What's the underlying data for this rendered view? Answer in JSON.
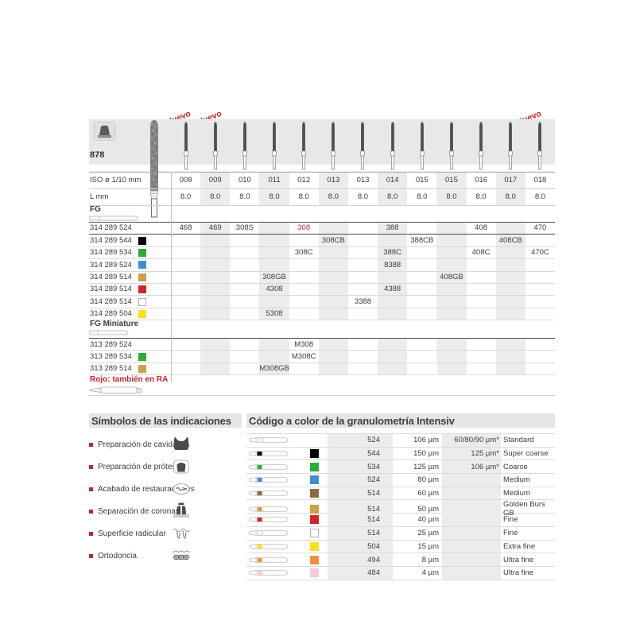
{
  "header": {
    "product_number": "878",
    "nuevo_labels": [
      "Nuevo",
      "Nuevo",
      "Nuevo"
    ],
    "iso_label": "ISO ø 1/10 mm",
    "l_label": "L mm",
    "fg_label": "FG",
    "fg_miniature_label": "FG Miniature",
    "rojo_note": "Rojo: también en RA",
    "iso_values": [
      "008",
      "009",
      "010",
      "011",
      "012",
      "013",
      "013",
      "014",
      "015",
      "015",
      "016",
      "017",
      "018"
    ],
    "l_values": [
      "8.0",
      "8.0",
      "8.0",
      "8.0",
      "8.0",
      "8.0",
      "8.0",
      "8.0",
      "8.0",
      "8.0",
      "8.0",
      "8.0",
      "8.0"
    ]
  },
  "colors": {
    "black": "#000000",
    "green": "#2ea93c",
    "blue": "#3f8fd2",
    "gold": "#c9a24b",
    "brown": "#8a6b40",
    "red": "#d2232a",
    "white": "#ffffff",
    "yellow": "#fcdf1f",
    "orange": "#ef9143",
    "pink": "#f5c9d6",
    "accent_red": "#c5262c"
  },
  "main_rows": [
    {
      "code": "314 289 524",
      "color": "none",
      "cells": [
        "468",
        "469",
        "308S",
        "",
        "308",
        "",
        "",
        "388",
        "",
        "",
        "408",
        "",
        "470"
      ],
      "red_cells": [
        4
      ]
    },
    {
      "code": "314 289 544",
      "color": "black",
      "cells": [
        "",
        "",
        "",
        "",
        "",
        "308CB",
        "",
        "",
        "388CB",
        "",
        "",
        "408CB",
        ""
      ],
      "red_cells": []
    },
    {
      "code": "314 289 534",
      "color": "green",
      "cells": [
        "",
        "",
        "",
        "",
        "308C",
        "",
        "",
        "388C",
        "",
        "",
        "408C",
        "",
        "470C"
      ],
      "red_cells": []
    },
    {
      "code": "314 289 524",
      "color": "blue",
      "cells": [
        "",
        "",
        "",
        "",
        "",
        "",
        "",
        "8388",
        "",
        "",
        "",
        "",
        ""
      ],
      "red_cells": []
    },
    {
      "code": "314 289 514",
      "color": "gold",
      "cells": [
        "",
        "",
        "",
        "308GB",
        "",
        "",
        "",
        "",
        "",
        "408GB",
        "",
        "",
        ""
      ],
      "red_cells": []
    },
    {
      "code": "314 289 514",
      "color": "red",
      "cells": [
        "",
        "",
        "",
        "4308",
        "",
        "",
        "",
        "4388",
        "",
        "",
        "",
        "",
        ""
      ],
      "red_cells": []
    },
    {
      "code": "314 289 514",
      "color": "white",
      "cells": [
        "",
        "",
        "",
        "",
        "",
        "",
        "3388",
        "",
        "",
        "",
        "",
        "",
        ""
      ],
      "red_cells": []
    },
    {
      "code": "314 289 504",
      "color": "yellow",
      "cells": [
        "",
        "",
        "",
        "5308",
        "",
        "",
        "",
        "",
        "",
        "",
        "",
        "",
        ""
      ],
      "red_cells": []
    }
  ],
  "miniature_rows": [
    {
      "code": "313 289 524",
      "color": "none",
      "cells": [
        "",
        "",
        "",
        "",
        "M308",
        "",
        "",
        "",
        "",
        "",
        "",
        "",
        ""
      ],
      "red_cells": []
    },
    {
      "code": "313 289 534",
      "color": "green",
      "cells": [
        "",
        "",
        "",
        "",
        "M308C",
        "",
        "",
        "",
        "",
        "",
        "",
        "",
        ""
      ],
      "red_cells": []
    },
    {
      "code": "313 289 514",
      "color": "gold",
      "cells": [
        "",
        "",
        "",
        "M308GB",
        "",
        "",
        "",
        "",
        "",
        "",
        "",
        "",
        ""
      ],
      "red_cells": []
    }
  ],
  "symbols": {
    "title": "Símbolos de las indicaciones",
    "items": [
      {
        "label": "Preparación de cavidades",
        "icon": "cavity-prep-icon"
      },
      {
        "label": "Preparación de prótesis",
        "icon": "prosthesis-prep-icon"
      },
      {
        "label": "Acabado de restauraciones",
        "icon": "restoration-finishing-icon"
      },
      {
        "label": "Separación de coronas",
        "icon": "crown-separation-icon"
      },
      {
        "label": "Superficie radicular",
        "icon": "root-surface-icon"
      },
      {
        "label": "Ortodoncia",
        "icon": "orthodontics-icon"
      }
    ]
  },
  "granulometry": {
    "title": "Código a color de la granulometría Intensiv",
    "rows": [
      {
        "band": "none",
        "code": "524",
        "size": "106 µm",
        "extra": "60/80/90 µm*",
        "name": "Standard"
      },
      {
        "band": "black",
        "code": "544",
        "size": "150 µm",
        "extra": "125 µm*",
        "name": "Super coarse"
      },
      {
        "band": "green",
        "code": "534",
        "size": "125 µm",
        "extra": "106 µm*",
        "name": "Coarse"
      },
      {
        "band": "blue",
        "code": "524",
        "size": "80 µm",
        "extra": "",
        "name": "Medium"
      },
      {
        "band": "brown",
        "code": "514",
        "size": "60 µm",
        "extra": "",
        "name": "Medium"
      },
      {
        "band": "gold",
        "code": "514",
        "size": "50 µm",
        "extra": "",
        "name": "Golden Burs GB"
      },
      {
        "band": "red",
        "code": "514",
        "size": "40 µm",
        "extra": "",
        "name": "Fine"
      },
      {
        "band": "white",
        "code": "514",
        "size": "25 µm",
        "extra": "",
        "name": "Fine"
      },
      {
        "band": "yellow",
        "code": "504",
        "size": "15 µm",
        "extra": "",
        "name": "Extra fine"
      },
      {
        "band": "orange",
        "code": "494",
        "size": "8 µm",
        "extra": "",
        "name": "Ultra fine"
      },
      {
        "band": "pink",
        "code": "484",
        "size": "4 µm",
        "extra": "",
        "name": "Ultra fine"
      }
    ]
  }
}
